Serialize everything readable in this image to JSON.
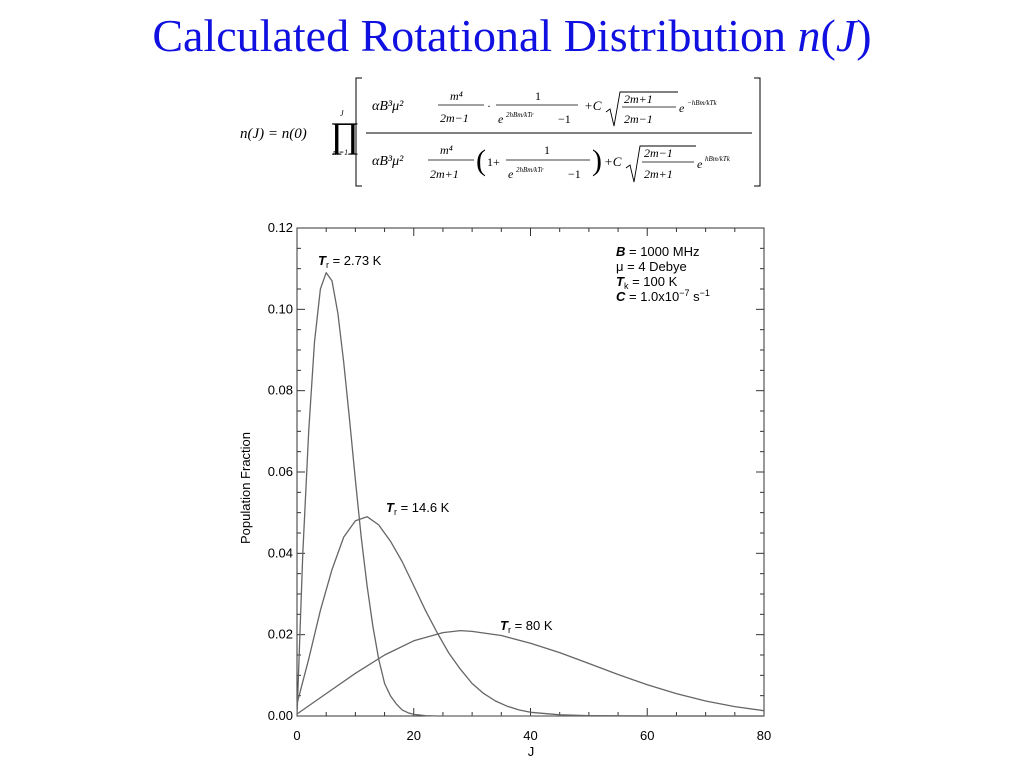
{
  "slide": {
    "title_prefix": "Calculated Rotational Distribution ",
    "title_func": "n",
    "title_open": "(",
    "title_var": "J",
    "title_close": ")"
  },
  "colors": {
    "title": "#1010e0",
    "curve": "#666666",
    "axis": "#333333",
    "text": "#000000"
  },
  "equation": {
    "lhs": "n(J) = n(0)",
    "product_upper": "J",
    "product_lower": "m=1",
    "prefactor": "αB³μ²",
    "num_frac_num": "m⁴",
    "num_frac_den": "2m−1",
    "num_boltz_num": "1",
    "num_boltz_den_exp": "2hBm/kTr",
    "num_boltz_den_tail": "−1",
    "plus_c": "+C",
    "num_sqrt": {
      "num": "2m+1",
      "den": "2m−1"
    },
    "num_exp": "−hBm/kTk",
    "den_frac_num": "m⁴",
    "den_frac_den": "2m+1",
    "den_one_plus": "1+",
    "den_boltz_num": "1",
    "den_boltz_den_exp": "2hBm/kTr",
    "den_boltz_den_tail": "−1",
    "den_sqrt": {
      "num": "2m−1",
      "den": "2m+1"
    },
    "den_exp": "hBm/kTk"
  },
  "chart_data": {
    "type": "line",
    "title": "",
    "xlabel": "J",
    "ylabel": "Population Fraction",
    "xlim": [
      0,
      80
    ],
    "ylim": [
      0,
      0.12
    ],
    "xticks": [
      "0",
      "20",
      "40",
      "60",
      "80"
    ],
    "yticks": [
      "0.00",
      "0.02",
      "0.04",
      "0.06",
      "0.08",
      "0.10",
      "0.12"
    ],
    "grid": false,
    "series": [
      {
        "name": "Tr = 2.73 K",
        "label_T": "T",
        "label_sub": "r",
        "label_rest": " = 2.73 K",
        "x": [
          0,
          1,
          2,
          3,
          4,
          5,
          6,
          7,
          8,
          9,
          10,
          11,
          12,
          13,
          14,
          15,
          16,
          17,
          18,
          19,
          20,
          22,
          24,
          26,
          30,
          40,
          60,
          80
        ],
        "y": [
          0.0,
          0.04,
          0.07,
          0.092,
          0.105,
          0.109,
          0.107,
          0.099,
          0.087,
          0.073,
          0.058,
          0.044,
          0.032,
          0.022,
          0.014,
          0.008,
          0.005,
          0.003,
          0.0015,
          0.0008,
          0.0004,
          0.0001,
          0.0,
          0.0,
          0.0,
          0.0,
          0.0,
          0.0
        ]
      },
      {
        "name": "Tr = 14.6 K",
        "label_T": "T",
        "label_sub": "r",
        "label_rest": " = 14.6 K",
        "x": [
          0,
          2,
          4,
          6,
          8,
          10,
          12,
          14,
          16,
          18,
          20,
          22,
          24,
          26,
          28,
          30,
          32,
          34,
          36,
          38,
          40,
          45,
          50,
          60,
          80
        ],
        "y": [
          0.003,
          0.014,
          0.026,
          0.036,
          0.044,
          0.048,
          0.049,
          0.047,
          0.043,
          0.038,
          0.032,
          0.026,
          0.0205,
          0.0155,
          0.0115,
          0.008,
          0.0055,
          0.0037,
          0.0024,
          0.0015,
          0.0009,
          0.0003,
          0.0001,
          0.0,
          0.0
        ]
      },
      {
        "name": "Tr = 80 K",
        "label_T": "T",
        "label_sub": "r",
        "label_rest": " = 80 K",
        "x": [
          0,
          5,
          10,
          15,
          20,
          25,
          28,
          30,
          35,
          40,
          45,
          50,
          55,
          60,
          65,
          70,
          75,
          80
        ],
        "y": [
          0.0005,
          0.0055,
          0.0105,
          0.015,
          0.0185,
          0.0205,
          0.021,
          0.0208,
          0.0198,
          0.0179,
          0.0156,
          0.0129,
          0.0102,
          0.0077,
          0.0055,
          0.0037,
          0.0023,
          0.0013
        ]
      }
    ],
    "parameters": [
      {
        "sym": "B",
        "sub": "",
        "sup": "",
        "text": " = 1000 MHz"
      },
      {
        "sym": "μ",
        "sub": "",
        "sup": "",
        "text": " = 4 Debye"
      },
      {
        "sym": "T",
        "sub": "k",
        "sup": "",
        "text": " = 100 K"
      },
      {
        "sym": "C",
        "sub": "",
        "sup": "−7",
        "pre": " = 1.0x10",
        "text": " s",
        "sup2": "−1"
      }
    ]
  }
}
